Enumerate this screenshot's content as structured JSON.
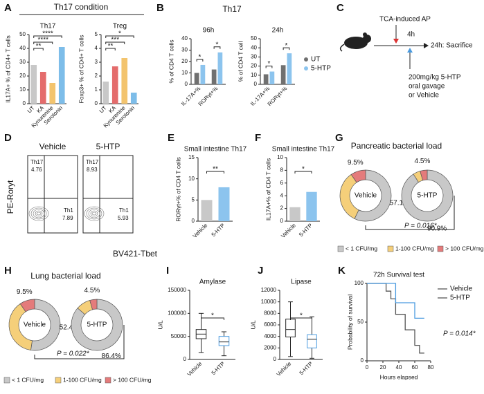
{
  "panel_letters": [
    "A",
    "B",
    "C",
    "D",
    "E",
    "F",
    "G",
    "H",
    "I",
    "J",
    "K"
  ],
  "headers": {
    "A": "Th17 condition",
    "B": "Th17"
  },
  "diagram": {
    "event": "TCA-induced AP",
    "interval": "4h",
    "end": "24h: Sacrifice",
    "treatment": [
      "200mg/kg 5-HTP",
      "oral gavage",
      "or Vehicle"
    ]
  },
  "flow": {
    "y_label": "PE-Roryt",
    "x_label": "BV421-Tbet",
    "plots": [
      {
        "title": "Vehicle",
        "th17_label": "Th17",
        "th17": 4.76,
        "th1_label": "Th1",
        "th1": 7.89
      },
      {
        "title": "5-HTP",
        "th17_label": "Th17",
        "th17": 8.93,
        "th1_label": "Th1",
        "th1": 5.93
      }
    ]
  },
  "chart_data": [
    {
      "type": "bar",
      "title": "Th17",
      "ylabel": "IL17A+ % of CD4+ T cells",
      "categories": [
        "UT",
        "KA",
        "Kynurenine",
        "Serotonin"
      ],
      "values": [
        28,
        23,
        15,
        41
      ],
      "colors": [
        "#c8c8c8",
        "#e46c6c",
        "#f3c46e",
        "#7dbde9"
      ],
      "ylim": [
        0,
        50
      ],
      "yticks": [
        0,
        10,
        20,
        30,
        40,
        50
      ],
      "annotations": [
        "**",
        "****",
        "****"
      ]
    },
    {
      "type": "bar",
      "title": "Treg",
      "ylabel": "Foxp3+ % of CD4+ T cells",
      "categories": [
        "UT",
        "KA",
        "Kynurenine",
        "Serotonin"
      ],
      "values": [
        1.6,
        2.7,
        3.3,
        0.8
      ],
      "colors": [
        "#c8c8c8",
        "#e46c6c",
        "#f3c46e",
        "#7dbde9"
      ],
      "ylim": [
        0,
        5
      ],
      "yticks": [
        0,
        1,
        2,
        3,
        4,
        5
      ],
      "annotations": [
        "**",
        "***",
        "*"
      ]
    },
    {
      "type": "grouped_bar",
      "title": "96h",
      "ylabel": "% of CD4 T cells",
      "categories": [
        "IL-17A+%",
        "RORγt+%"
      ],
      "series": [
        {
          "name": "UT",
          "color": "#707070",
          "values": [
            10,
            13
          ]
        },
        {
          "name": "5-HTP",
          "color": "#8cc4ee",
          "values": [
            17,
            28
          ]
        }
      ],
      "ylim": [
        0,
        40
      ],
      "yticks": [
        0,
        10,
        20,
        30,
        40
      ],
      "annotations": [
        "*",
        "*"
      ]
    },
    {
      "type": "grouped_bar",
      "title": "24h",
      "ylabel": "% of CD4 T cell",
      "categories": [
        "IL-17A+%",
        "RORγt+%"
      ],
      "series": [
        {
          "name": "UT",
          "color": "#707070",
          "values": [
            11,
            21
          ]
        },
        {
          "name": "5-HTP",
          "color": "#8cc4ee",
          "values": [
            14,
            34
          ]
        }
      ],
      "ylim": [
        0,
        50
      ],
      "yticks": [
        0,
        10,
        20,
        30,
        40,
        50
      ],
      "annotations": [
        "*",
        "*"
      ],
      "legend": "right"
    },
    {
      "type": "bar",
      "title": "Small intestine Th17",
      "ylabel": "RORγt+% of CD4 T cells",
      "categories": [
        "Vehicle",
        "5-HTP"
      ],
      "values": [
        5,
        8
      ],
      "colors": [
        "#c8c8c8",
        "#8cc4ee"
      ],
      "ylim": [
        0,
        15
      ],
      "yticks": [
        0,
        5,
        10,
        15
      ],
      "annotations": [
        "**"
      ]
    },
    {
      "type": "bar",
      "title": "Small intestine Th17",
      "ylabel": "IL17A+% of CD4 T cells",
      "categories": [
        "Vehicle",
        "5-HTP"
      ],
      "values": [
        2.2,
        4.6
      ],
      "colors": [
        "#c8c8c8",
        "#8cc4ee"
      ],
      "ylim": [
        0,
        10
      ],
      "yticks": [
        0,
        2,
        4,
        6,
        8,
        10
      ],
      "annotations": [
        "*"
      ]
    },
    {
      "type": "donut",
      "title": "Pancreatic bacterial load",
      "categories": [
        "< 1 CFU/mg",
        "1-100 CFU/mg",
        "> 100 CFU/mg"
      ],
      "colors": [
        "#c8c8c8",
        "#f5cf7a",
        "#e47b7b"
      ],
      "series": [
        {
          "name": "Vehicle",
          "values": [
            57.1,
            33.4,
            9.5
          ],
          "value_labels": [
            "57.1%",
            null,
            "9.5%"
          ]
        },
        {
          "name": "5-HTP",
          "values": [
            90.9,
            4.6,
            4.5
          ],
          "value_labels": [
            "90.9%",
            null,
            "4.5%"
          ]
        }
      ],
      "annotation": "P = 0.016*"
    },
    {
      "type": "donut",
      "title": "Lung bacterial load",
      "categories": [
        "< 1 CFU/mg",
        "1-100 CFU/mg",
        "> 100 CFU/mg"
      ],
      "colors": [
        "#c8c8c8",
        "#f5cf7a",
        "#e47b7b"
      ],
      "series": [
        {
          "name": "Vehicle",
          "values": [
            52.4,
            38.1,
            9.5
          ],
          "value_labels": [
            "52.4%",
            null,
            "9.5%"
          ]
        },
        {
          "name": "5-HTP",
          "values": [
            86.4,
            9.1,
            4.5
          ],
          "value_labels": [
            "86.4%",
            null,
            "4.5%"
          ]
        }
      ],
      "annotation": "P = 0.022*"
    },
    {
      "type": "box",
      "title": "Amylase",
      "ylabel": "U/L",
      "categories": [
        "Vehicle",
        "5-HTP"
      ],
      "colors": [
        "#222222",
        "#4a9be0"
      ],
      "boxes": [
        {
          "min": 15000,
          "q1": 45000,
          "median": 55000,
          "q3": 65000,
          "max": 100000
        },
        {
          "min": 8000,
          "q1": 30000,
          "median": 38000,
          "q3": 50000,
          "max": 60000
        }
      ],
      "ylim": [
        0,
        150000
      ],
      "yticks": [
        0,
        50000,
        100000,
        150000
      ],
      "annotations": [
        "*"
      ]
    },
    {
      "type": "box",
      "title": "Lipase",
      "ylabel": "U/L",
      "categories": [
        "Vehicle",
        "5-HTP"
      ],
      "colors": [
        "#222222",
        "#4a9be0"
      ],
      "boxes": [
        {
          "min": 500,
          "q1": 3900,
          "median": 5200,
          "q3": 7000,
          "max": 10000
        },
        {
          "min": 200,
          "q1": 2000,
          "median": 3500,
          "q3": 4300,
          "max": 7400
        }
      ],
      "ylim": [
        0,
        12000
      ],
      "yticks": [
        0,
        2000,
        4000,
        6000,
        8000,
        10000,
        12000
      ],
      "annotations": [
        "*"
      ]
    },
    {
      "type": "line",
      "title": "72h Survival test",
      "xlabel": "Hours elapsed",
      "ylabel": "Probability of survival",
      "series": [
        {
          "name": "Vehicle",
          "color": "#555555",
          "x": [
            0,
            24,
            24,
            30,
            30,
            36,
            36,
            48,
            48,
            60,
            60,
            66,
            66,
            72
          ],
          "values": [
            100,
            100,
            90,
            90,
            80,
            80,
            60,
            60,
            40,
            40,
            20,
            20,
            10,
            10
          ]
        },
        {
          "name": "5-HTP",
          "color": "#4a9be0",
          "x": [
            0,
            36,
            36,
            60,
            60,
            72
          ],
          "values": [
            100,
            100,
            75,
            75,
            55,
            55
          ]
        }
      ],
      "xlim": [
        0,
        80
      ],
      "xticks": [
        0,
        20,
        40,
        60,
        80
      ],
      "ylim": [
        0,
        100
      ],
      "yticks": [
        0,
        50,
        100
      ],
      "legend": "upper right",
      "annotation": "P = 0.014*"
    }
  ]
}
